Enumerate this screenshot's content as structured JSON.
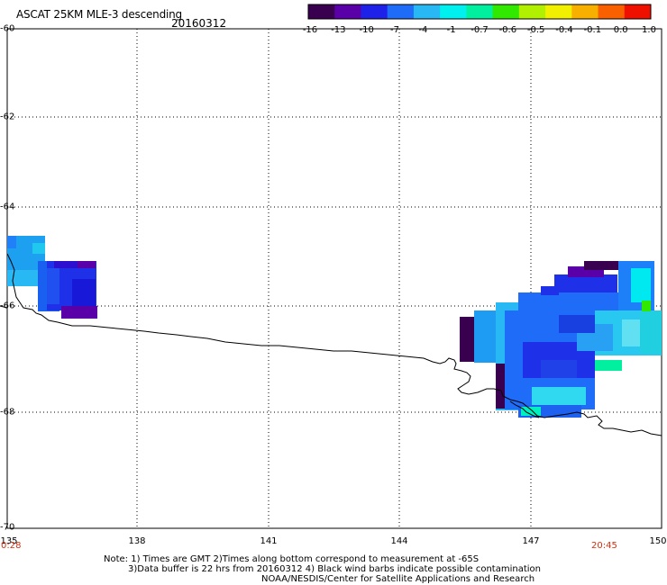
{
  "title": "ASCAT 25KM MLE-3 descending",
  "date": "20160312",
  "colorbar": {
    "labels": [
      "-16",
      "-13",
      "-10",
      "-7",
      "-4",
      "-1",
      "-0.7",
      "-0.6",
      "-0.5",
      "-0.4",
      "-0.1",
      "0.0",
      "1.0"
    ],
    "colors": [
      "#3a0050",
      "#5a00a8",
      "#1e22e8",
      "#1e6cf8",
      "#28b8f4",
      "#00f0f0",
      "#00f0a0",
      "#30e800",
      "#b0f000",
      "#f0f000",
      "#f8b000",
      "#f86000",
      "#f01000"
    ]
  },
  "lat_labels": [
    "-60",
    "-62",
    "-64",
    "-66",
    "-68",
    "-70"
  ],
  "lon_labels": [
    "135",
    "138",
    "141",
    "144",
    "147",
    "150"
  ],
  "times": {
    "left": "0:28",
    "right": "20:45"
  },
  "notes": [
    "Note: 1) Times are GMT 2)Times along bottom correspond to measurement at -65S",
    "3)Data buffer is 22 hrs from 20160312 4) Black wind barbs indicate possible contamination",
    "NOAA/NESDIS/Center for Satellite Applications and Research"
  ]
}
